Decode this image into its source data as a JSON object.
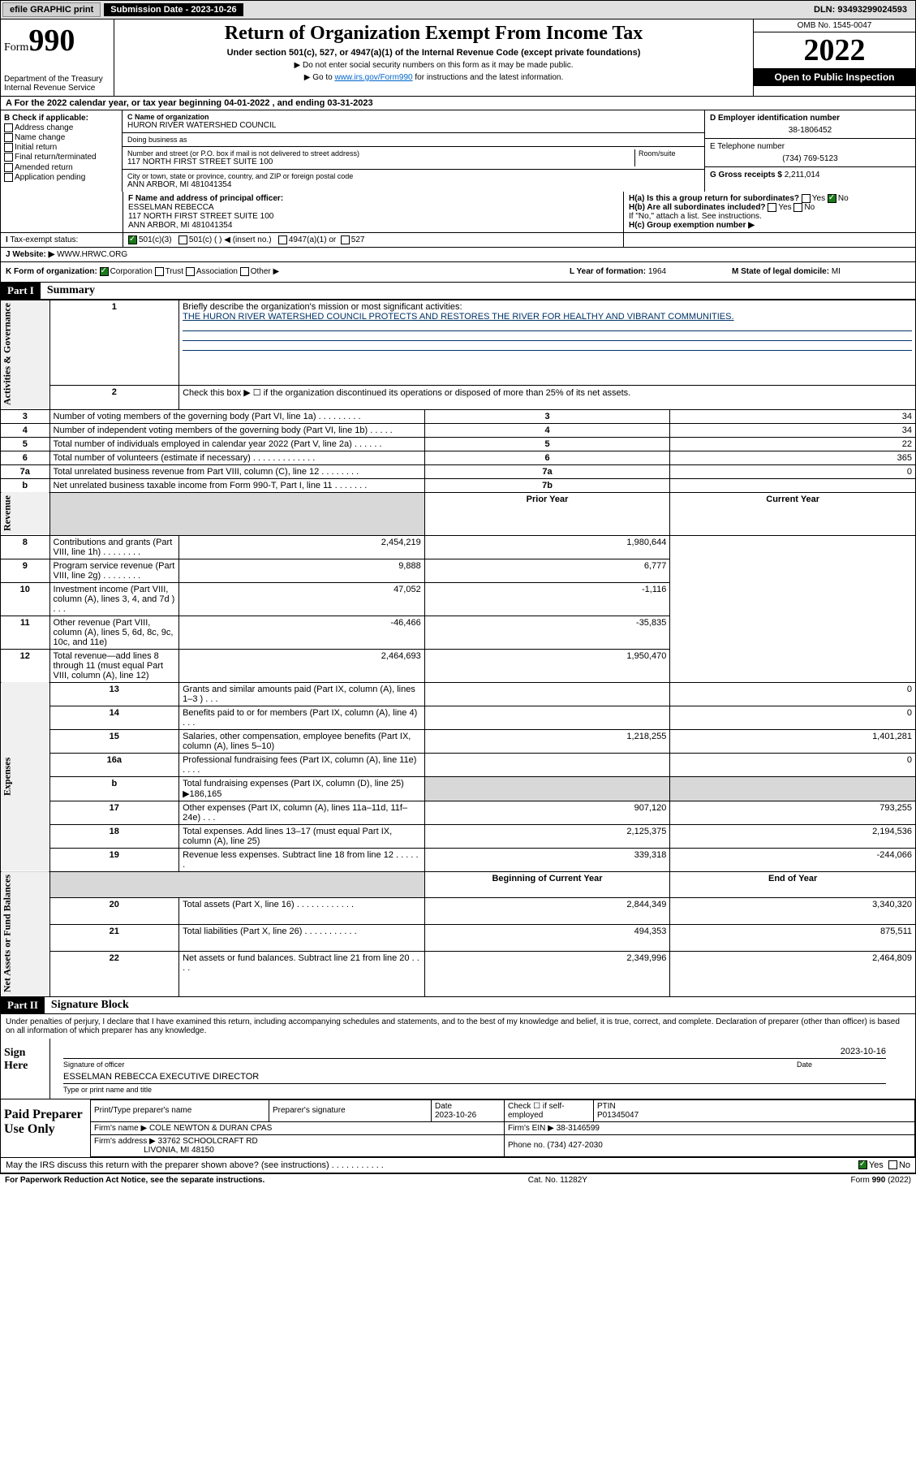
{
  "colors": {
    "link": "#0066cc",
    "mission_line": "#003366",
    "check_green": "#1a7a1a",
    "shade": "#d8d8d8"
  },
  "topbar": {
    "efile": "efile GRAPHIC print",
    "subdate_label": "Submission Date - 2023-10-26",
    "dln": "DLN: 93493299024593"
  },
  "header": {
    "form_word": "Form",
    "form_num": "990",
    "dept": "Department of the Treasury",
    "irs": "Internal Revenue Service",
    "title": "Return of Organization Exempt From Income Tax",
    "subtitle": "Under section 501(c), 527, or 4947(a)(1) of the Internal Revenue Code (except private foundations)",
    "note1": "▶ Do not enter social security numbers on this form as it may be made public.",
    "note2_pre": "▶ Go to ",
    "note2_link": "www.irs.gov/Form990",
    "note2_post": " for instructions and the latest information.",
    "omb": "OMB No. 1545-0047",
    "year": "2022",
    "open": "Open to Public Inspection"
  },
  "row_a": "A For the 2022 calendar year, or tax year beginning 04-01-2022    , and ending 03-31-2023",
  "boxB": {
    "label": "B Check if applicable:",
    "items": [
      "Address change",
      "Name change",
      "Initial return",
      "Final return/terminated",
      "Amended return",
      "Application pending"
    ]
  },
  "boxC": {
    "name_label": "C Name of organization",
    "name": "HURON RIVER WATERSHED COUNCIL",
    "dba_label": "Doing business as",
    "dba": "",
    "street_label": "Number and street (or P.O. box if mail is not delivered to street address)",
    "room_label": "Room/suite",
    "street": "117 NORTH FIRST STREET SUITE 100",
    "city_label": "City or town, state or province, country, and ZIP or foreign postal code",
    "city": "ANN ARBOR, MI  481041354"
  },
  "boxD": {
    "label": "D Employer identification number",
    "value": "38-1806452"
  },
  "boxE": {
    "label": "E Telephone number",
    "value": "(734) 769-5123"
  },
  "boxG": {
    "label": "G Gross receipts $",
    "value": "2,211,014"
  },
  "boxF": {
    "label": "F Name and address of principal officer:",
    "name": "ESSELMAN REBECCA",
    "addr1": "117 NORTH FIRST STREET SUITE 100",
    "addr2": "ANN ARBOR, MI  481041354"
  },
  "boxH": {
    "a_label": "H(a)  Is this a group return for subordinates?",
    "a_yes": "Yes",
    "a_no": "No",
    "b_label": "H(b)  Are all subordinates included?",
    "b_note": "If \"No,\" attach a list. See instructions.",
    "c_label": "H(c)  Group exemption number ▶"
  },
  "boxI": {
    "label": "Tax-exempt status:",
    "opt1": "501(c)(3)",
    "opt2": "501(c) (   ) ◀ (insert no.)",
    "opt3": "4947(a)(1) or",
    "opt4": "527"
  },
  "boxJ": {
    "label": "Website: ▶",
    "value": "WWW.HRWC.ORG"
  },
  "boxK": {
    "label": "K Form of organization:",
    "opts": [
      "Corporation",
      "Trust",
      "Association",
      "Other ▶"
    ]
  },
  "boxL": {
    "label": "L Year of formation:",
    "value": "1964"
  },
  "boxM": {
    "label": "M State of legal domicile:",
    "value": "MI"
  },
  "part1": {
    "hdr": "Part I",
    "title": "Summary",
    "line1_label": "Briefly describe the organization's mission or most significant activities:",
    "line1_text": "THE HURON RIVER WATERSHED COUNCIL PROTECTS AND RESTORES THE RIVER FOR HEALTHY AND VIBRANT COMMUNITIES.",
    "line2": "Check this box ▶ ☐  if the organization discontinued its operations or disposed of more than 25% of its net assets.",
    "governance_label": "Activities & Governance",
    "revenue_label": "Revenue",
    "expenses_label": "Expenses",
    "netassets_label": "Net Assets or Fund Balances",
    "lines_gov": [
      {
        "n": "3",
        "t": "Number of voting members of the governing body (Part VI, line 1a)   .    .    .    .    .    .    .    .    .",
        "box": "3",
        "v": "34"
      },
      {
        "n": "4",
        "t": "Number of independent voting members of the governing body (Part VI, line 1b)   .    .    .    .    .",
        "box": "4",
        "v": "34"
      },
      {
        "n": "5",
        "t": "Total number of individuals employed in calendar year 2022 (Part V, line 2a)   .    .    .    .    .    .",
        "box": "5",
        "v": "22"
      },
      {
        "n": "6",
        "t": "Total number of volunteers (estimate if necessary)   .    .    .    .    .    .    .    .    .    .    .    .    .",
        "box": "6",
        "v": "365"
      },
      {
        "n": "7a",
        "t": "Total unrelated business revenue from Part VIII, column (C), line 12   .    .    .    .    .    .    .    .",
        "box": "7a",
        "v": "0"
      },
      {
        "n": "b",
        "t": "Net unrelated business taxable income from Form 990-T, Part I, line 11   .    .    .    .    .    .    .",
        "box": "7b",
        "v": ""
      }
    ],
    "col_prior": "Prior Year",
    "col_current": "Current Year",
    "lines_rev": [
      {
        "n": "8",
        "t": "Contributions and grants (Part VIII, line 1h)   .    .    .    .    .    .    .    .",
        "p": "2,454,219",
        "c": "1,980,644"
      },
      {
        "n": "9",
        "t": "Program service revenue (Part VIII, line 2g)   .    .    .    .    .    .    .    .",
        "p": "9,888",
        "c": "6,777"
      },
      {
        "n": "10",
        "t": "Investment income (Part VIII, column (A), lines 3, 4, and 7d )   .    .    .",
        "p": "47,052",
        "c": "-1,116"
      },
      {
        "n": "11",
        "t": "Other revenue (Part VIII, column (A), lines 5, 6d, 8c, 9c, 10c, and 11e)",
        "p": "-46,466",
        "c": "-35,835"
      },
      {
        "n": "12",
        "t": "Total revenue—add lines 8 through 11 (must equal Part VIII, column (A), line 12)",
        "p": "2,464,693",
        "c": "1,950,470"
      }
    ],
    "lines_exp": [
      {
        "n": "13",
        "t": "Grants and similar amounts paid (Part IX, column (A), lines 1–3 )   .    .    .",
        "p": "",
        "c": "0"
      },
      {
        "n": "14",
        "t": "Benefits paid to or for members (Part IX, column (A), line 4)   .    .    .",
        "p": "",
        "c": "0"
      },
      {
        "n": "15",
        "t": "Salaries, other compensation, employee benefits (Part IX, column (A), lines 5–10)",
        "p": "1,218,255",
        "c": "1,401,281"
      },
      {
        "n": "16a",
        "t": "Professional fundraising fees (Part IX, column (A), line 11e)   .    .    .    .",
        "p": "",
        "c": "0"
      },
      {
        "n": "b",
        "t": "Total fundraising expenses (Part IX, column (D), line 25) ▶186,165",
        "p": "shade",
        "c": "shade"
      },
      {
        "n": "17",
        "t": "Other expenses (Part IX, column (A), lines 11a–11d, 11f–24e)   .    .    .",
        "p": "907,120",
        "c": "793,255"
      },
      {
        "n": "18",
        "t": "Total expenses. Add lines 13–17 (must equal Part IX, column (A), line 25)",
        "p": "2,125,375",
        "c": "2,194,536"
      },
      {
        "n": "19",
        "t": "Revenue less expenses. Subtract line 18 from line 12   .    .    .    .    .    .",
        "p": "339,318",
        "c": "-244,066"
      }
    ],
    "col_begin": "Beginning of Current Year",
    "col_end": "End of Year",
    "lines_na": [
      {
        "n": "20",
        "t": "Total assets (Part X, line 16)   .    .    .    .    .    .    .    .    .    .    .    .",
        "p": "2,844,349",
        "c": "3,340,320"
      },
      {
        "n": "21",
        "t": "Total liabilities (Part X, line 26)   .    .    .    .    .    .    .    .    .    .    .",
        "p": "494,353",
        "c": "875,511"
      },
      {
        "n": "22",
        "t": "Net assets or fund balances. Subtract line 21 from line 20   .    .    .    .",
        "p": "2,349,996",
        "c": "2,464,809"
      }
    ]
  },
  "part2": {
    "hdr": "Part II",
    "title": "Signature Block",
    "decl": "Under penalties of perjury, I declare that I have examined this return, including accompanying schedules and statements, and to the best of my knowledge and belief, it is true, correct, and complete. Declaration of preparer (other than officer) is based on all information of which preparer has any knowledge.",
    "sign_here": "Sign Here",
    "sig_officer": "Signature of officer",
    "sig_date": "2023-10-16",
    "date_lbl": "Date",
    "officer_name": "ESSELMAN REBECCA  EXECUTIVE DIRECTOR",
    "name_title_lbl": "Type or print name and title",
    "paid_prep": "Paid Preparer Use Only",
    "prep_name_lbl": "Print/Type preparer's name",
    "prep_sig_lbl": "Preparer's signature",
    "prep_date_lbl": "Date",
    "prep_date": "2023-10-26",
    "check_self": "Check ☐ if self-employed",
    "ptin_lbl": "PTIN",
    "ptin": "P01345047",
    "firm_name_lbl": "Firm's name      ▶",
    "firm_name": "COLE NEWTON & DURAN CPAS",
    "firm_ein_lbl": "Firm's EIN ▶",
    "firm_ein": "38-3146599",
    "firm_addr_lbl": "Firm's address ▶",
    "firm_addr1": "33762 SCHOOLCRAFT RD",
    "firm_addr2": "LIVONIA, MI  48150",
    "phone_lbl": "Phone no.",
    "phone": "(734) 427-2030",
    "discuss": "May the IRS discuss this return with the preparer shown above? (see instructions)   .    .    .    .    .    .    .    .    .    .    .",
    "yes": "Yes",
    "no": "No"
  },
  "footer": {
    "left": "For Paperwork Reduction Act Notice, see the separate instructions.",
    "mid": "Cat. No. 11282Y",
    "right": "Form 990 (2022)"
  }
}
